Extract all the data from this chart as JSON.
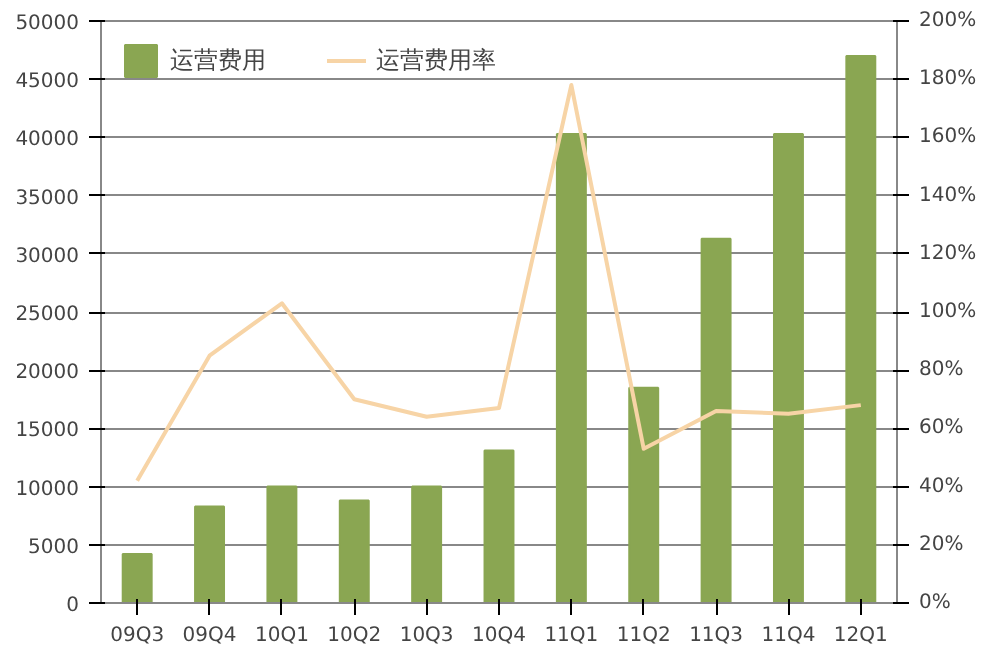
{
  "chart_data": {
    "type": "bar",
    "categories": [
      "09Q3",
      "09Q4",
      "10Q1",
      "10Q2",
      "10Q3",
      "10Q4",
      "11Q1",
      "11Q2",
      "11Q3",
      "11Q4",
      "12Q1"
    ],
    "series": [
      {
        "name": "运营费用",
        "color": "#8aa652",
        "values": [
          4200,
          8300,
          10000,
          8800,
          10000,
          13100,
          40300,
          18500,
          31300,
          40300,
          47000
        ]
      },
      {
        "name": "运营费用率",
        "type": "line",
        "axis": "y2",
        "color": "#f7d4a6",
        "values": [
          42,
          85,
          103,
          70,
          64,
          67,
          178,
          53,
          66,
          65,
          68
        ]
      }
    ],
    "ylim": [
      0,
      50000
    ],
    "yticks": [
      0,
      5000,
      10000,
      15000,
      20000,
      25000,
      30000,
      35000,
      40000,
      45000,
      50000
    ],
    "y2lim": [
      0,
      200
    ],
    "y2ticks": [
      {
        "value": 0,
        "label": "0%"
      },
      {
        "value": 20,
        "label": "20%"
      },
      {
        "value": 40,
        "label": "40%"
      },
      {
        "value": 60,
        "label": "60%"
      },
      {
        "value": 80,
        "label": "80%"
      },
      {
        "value": 100,
        "label": "100%"
      },
      {
        "value": 120,
        "label": "120%"
      },
      {
        "value": 140,
        "label": "140%"
      },
      {
        "value": 160,
        "label": "160%"
      },
      {
        "value": 180,
        "label": "180%"
      },
      {
        "value": 200,
        "label": "200%"
      }
    ],
    "grid": "y",
    "legend": "top",
    "marker": "none",
    "line_style": "solid"
  }
}
